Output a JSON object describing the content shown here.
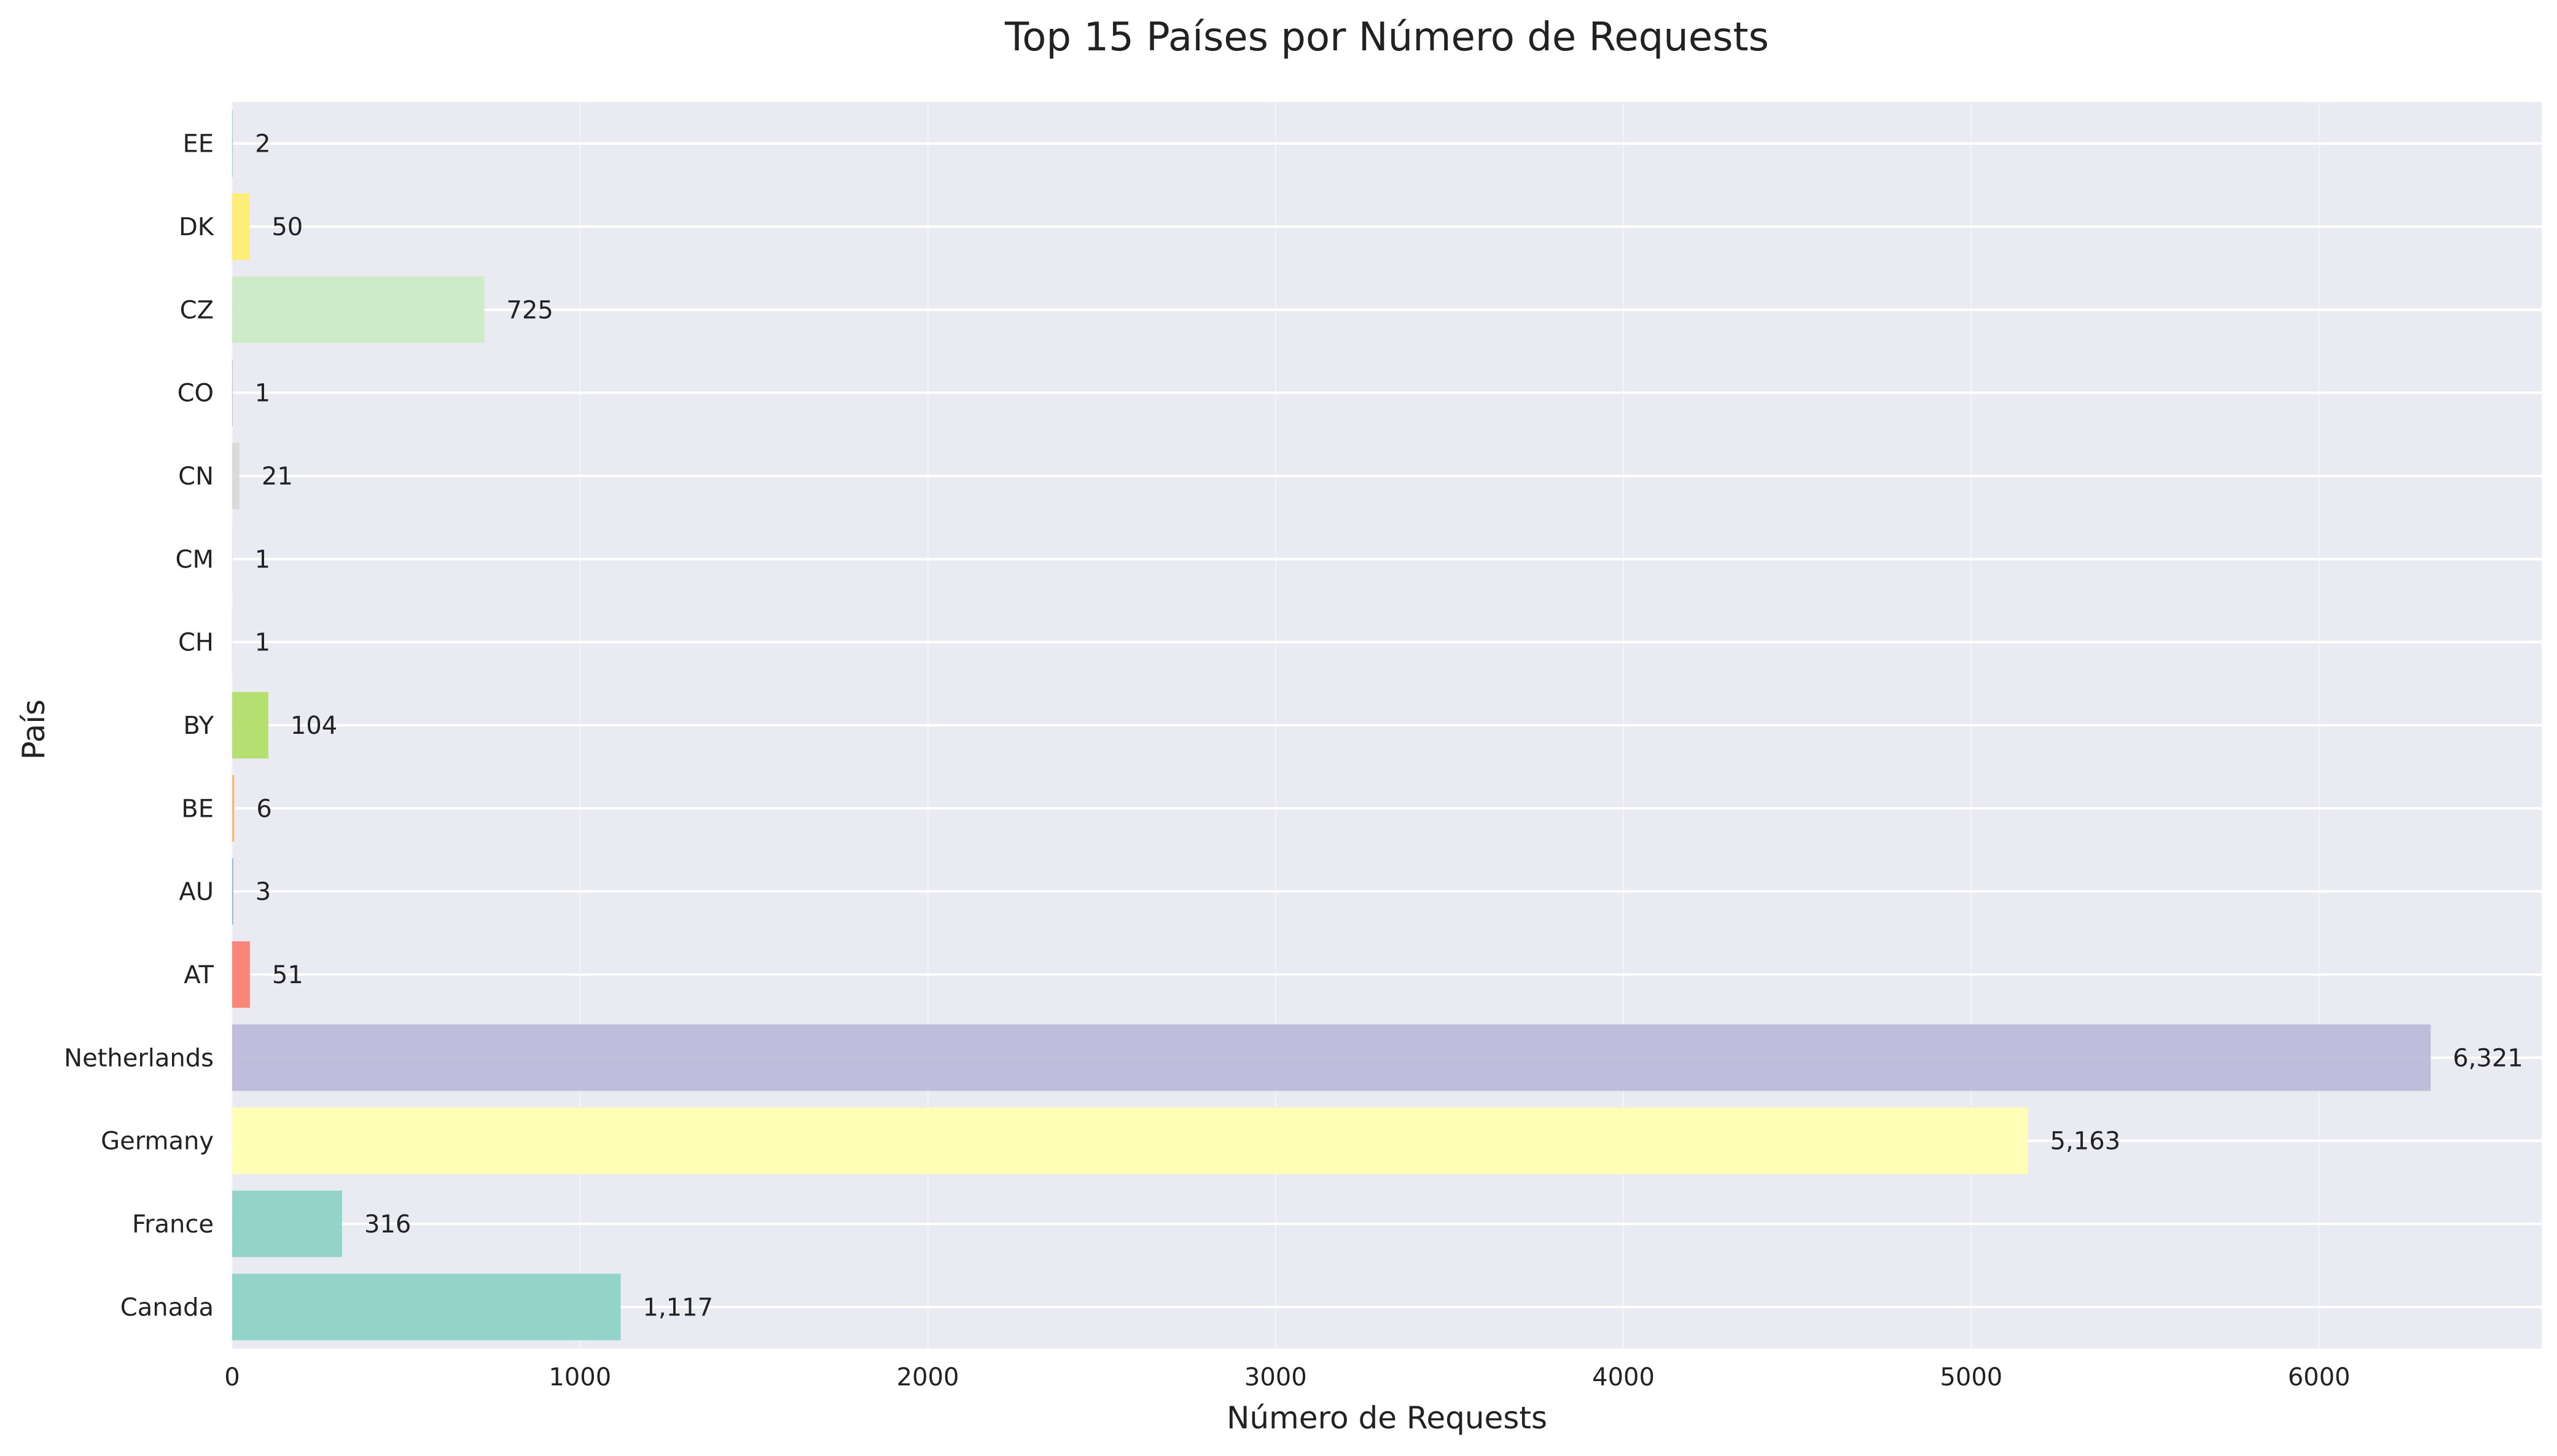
{
  "chart_data": {
    "type": "bar",
    "orientation": "horizontal",
    "title": "Top 15 Países por Número de Requests",
    "xlabel": "Número de Requests",
    "ylabel": "País",
    "categories": [
      "Canada",
      "France",
      "Germany",
      "Netherlands",
      "AT",
      "AU",
      "BE",
      "BY",
      "CH",
      "CM",
      "CN",
      "CO",
      "CZ",
      "DK",
      "EE"
    ],
    "values": [
      1117,
      316,
      5163,
      6321,
      51,
      3,
      6,
      104,
      1,
      1,
      21,
      1,
      725,
      50,
      2
    ],
    "value_labels": [
      "1,117",
      "316",
      "5,163",
      "6,321",
      "51",
      "3",
      "6",
      "104",
      "1",
      "1",
      "21",
      "1",
      "725",
      "50",
      "2"
    ],
    "colors": [
      "#8dd3c7",
      "#8dd3c7",
      "#ffffb3",
      "#bebada",
      "#fb8072",
      "#80b1d3",
      "#fdb462",
      "#b3de69",
      "#fccde5",
      "#d9d9d9",
      "#d9d9d9",
      "#bc80bd",
      "#ccebc5",
      "#ffed6f",
      "#8dd3c7"
    ],
    "xlim": [
      0,
      6640
    ],
    "xticks": [
      0,
      1000,
      2000,
      3000,
      4000,
      5000,
      6000
    ],
    "xtick_labels": [
      "0",
      "1000",
      "2000",
      "3000",
      "4000",
      "5000",
      "6000"
    ],
    "grid": true,
    "background_color": "#eaeaf2",
    "grid_color": "#ffffff"
  }
}
